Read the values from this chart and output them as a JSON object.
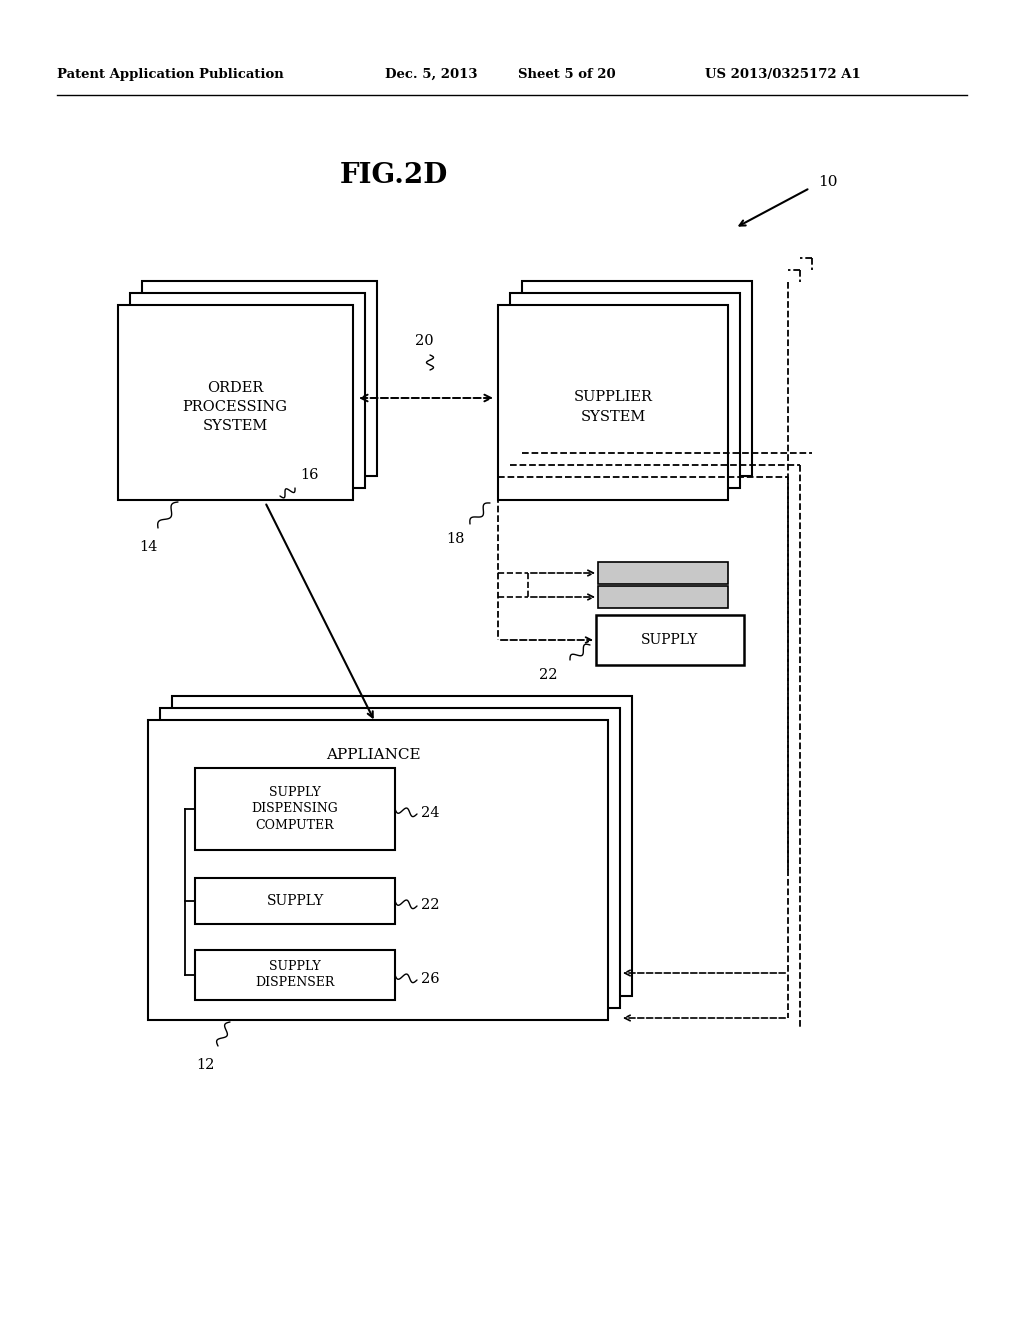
{
  "bg_color": "#ffffff",
  "header_text": "Patent Application Publication",
  "header_date": "Dec. 5, 2013",
  "header_sheet": "Sheet 5 of 20",
  "header_patent": "US 2013/0325172 A1",
  "fig_label": "FIG.2D",
  "label_10": "10",
  "label_12": "12",
  "label_14": "14",
  "label_16": "16",
  "label_18": "18",
  "label_20": "20",
  "label_22_supply": "22",
  "label_22_inner": "22",
  "label_24": "24",
  "label_26": "26",
  "ops_text": "ORDER\nPROCESSING\nSYSTEM",
  "supplier_text": "SUPPLIER\nSYSTEM",
  "appliance_text": "APPLIANCE",
  "supply_text": "SUPPLY",
  "sdc_text": "SUPPLY\nDISPENSING\nCOMPUTER",
  "supply2_text": "SUPPLY",
  "dispenser_text": "SUPPLY\nDISPENSER"
}
